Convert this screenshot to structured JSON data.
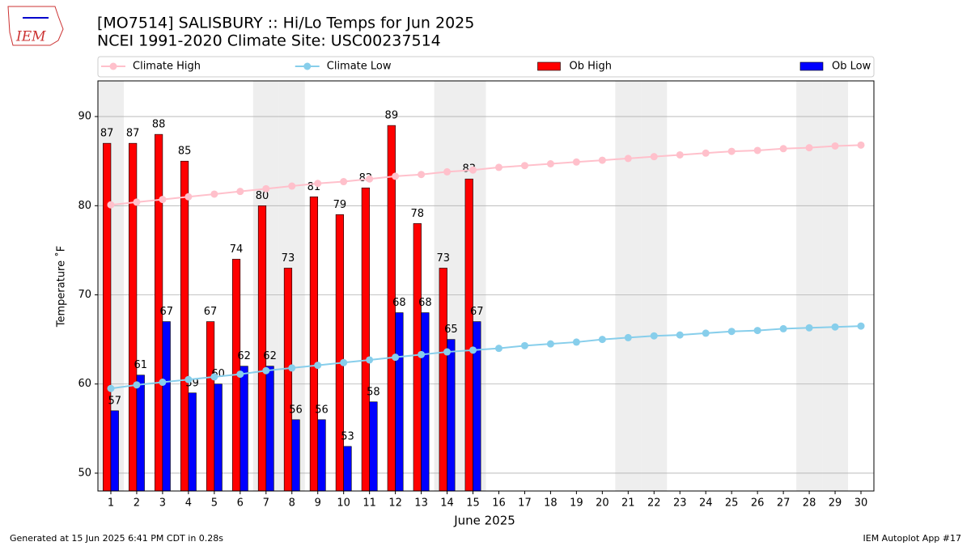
{
  "logo_text": "IEM",
  "chart_data": {
    "type": "bar",
    "title": "[MO7514] SALISBURY :: Hi/Lo Temps for Jun 2025",
    "subtitle": "NCEI 1991-2020 Climate Site: USC00237514",
    "xlabel": "June 2025",
    "ylabel": "Temperature ˚F",
    "x": [
      1,
      2,
      3,
      4,
      5,
      6,
      7,
      8,
      9,
      10,
      11,
      12,
      13,
      14,
      15,
      16,
      17,
      18,
      19,
      20,
      21,
      22,
      23,
      24,
      25,
      26,
      27,
      28,
      29,
      30
    ],
    "xlim": [
      0.5,
      30.5
    ],
    "xticks": [
      1,
      2,
      3,
      4,
      5,
      6,
      7,
      8,
      9,
      10,
      11,
      12,
      13,
      14,
      15,
      16,
      17,
      18,
      19,
      20,
      21,
      22,
      23,
      24,
      25,
      26,
      27,
      28,
      29,
      30
    ],
    "ylim": [
      48,
      94
    ],
    "yticks": [
      50,
      60,
      70,
      80,
      90
    ],
    "grid": true,
    "shaded_days": [
      1,
      7,
      8,
      14,
      15,
      21,
      22,
      28,
      29
    ],
    "legend": "top",
    "series": [
      {
        "name": "Climate High",
        "type": "line",
        "color": "#ffc0cb",
        "values": [
          80.1,
          80.4,
          80.7,
          81.0,
          81.3,
          81.6,
          81.9,
          82.2,
          82.5,
          82.7,
          83.0,
          83.3,
          83.5,
          83.8,
          84.0,
          84.3,
          84.5,
          84.7,
          84.9,
          85.1,
          85.3,
          85.5,
          85.7,
          85.9,
          86.1,
          86.2,
          86.4,
          86.5,
          86.7,
          86.8
        ]
      },
      {
        "name": "Climate Low",
        "type": "line",
        "color": "#87ceeb",
        "values": [
          59.5,
          59.9,
          60.2,
          60.5,
          60.8,
          61.1,
          61.5,
          61.8,
          62.1,
          62.4,
          62.7,
          63.0,
          63.3,
          63.6,
          63.8,
          64.0,
          64.3,
          64.5,
          64.7,
          65.0,
          65.2,
          65.4,
          65.5,
          65.7,
          65.9,
          66.0,
          66.2,
          66.3,
          66.4,
          66.5
        ]
      },
      {
        "name": "Ob High",
        "type": "bar",
        "color": "#ff0000",
        "values": [
          87,
          87,
          88,
          85,
          67,
          74,
          80,
          73,
          81,
          79,
          82,
          89,
          78,
          73,
          83,
          null,
          null,
          null,
          null,
          null,
          null,
          null,
          null,
          null,
          null,
          null,
          null,
          null,
          null,
          null
        ]
      },
      {
        "name": "Ob Low",
        "type": "bar",
        "color": "#0000ff",
        "values": [
          57,
          61,
          67,
          59,
          60,
          62,
          62,
          56,
          56,
          53,
          58,
          68,
          68,
          65,
          67,
          null,
          null,
          null,
          null,
          null,
          null,
          null,
          null,
          null,
          null,
          null,
          null,
          null,
          null,
          null
        ]
      }
    ],
    "footer_left": "Generated at 15 Jun 2025 6:41 PM CDT in 0.28s",
    "footer_right": "IEM Autoplot App #17"
  }
}
